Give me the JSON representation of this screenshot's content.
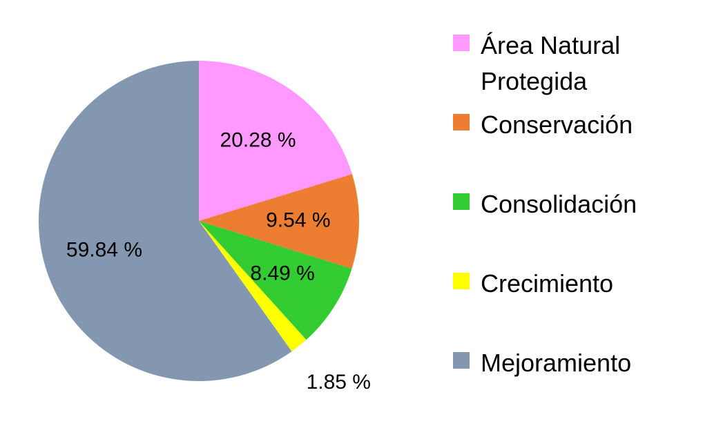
{
  "chart_data": {
    "type": "pie",
    "categories": [
      "Área Natural Protegida",
      "Conservación",
      "Consolidación",
      "Crecimiento",
      "Mejoramiento"
    ],
    "values": [
      20.28,
      9.54,
      8.49,
      1.85,
      59.84
    ],
    "value_labels": [
      "20.28 %",
      "9.54 %",
      "8.49 %",
      "1.85 %",
      "59.84 %"
    ],
    "colors": [
      "#ff99ff",
      "#ed7d31",
      "#33cc33",
      "#ffff00",
      "#8497b0"
    ],
    "legend": "right"
  }
}
